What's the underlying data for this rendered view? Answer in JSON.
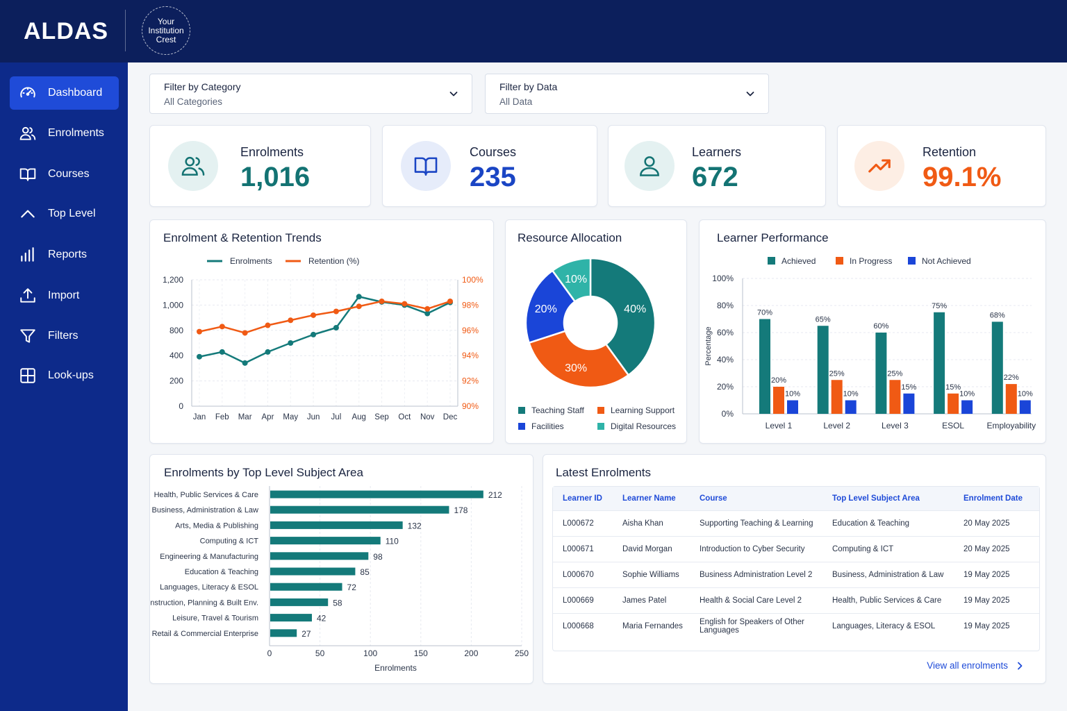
{
  "app": {
    "logo": "ALDAS",
    "crest": "Your Institution Crest"
  },
  "sidebar": {
    "items": [
      {
        "label": "Dashboard",
        "icon": "gauge-icon",
        "active": true
      },
      {
        "label": "Enrolments",
        "icon": "users-icon"
      },
      {
        "label": "Courses",
        "icon": "book-icon"
      },
      {
        "label": "Top Level",
        "icon": "chevron-up-icon"
      },
      {
        "label": "Reports",
        "icon": "bar-chart-icon"
      },
      {
        "label": "Import",
        "icon": "upload-icon"
      },
      {
        "label": "Filters",
        "icon": "filter-icon"
      },
      {
        "label": "Look-ups",
        "icon": "grid-icon"
      }
    ]
  },
  "filters": {
    "category": {
      "label": "Filter by Category",
      "value": "All Categories"
    },
    "data": {
      "label": "Filter by Data",
      "value": "All Data"
    }
  },
  "kpis": [
    {
      "label": "Enrolments",
      "value": "1,016",
      "icon": "users-icon",
      "color": "#137373"
    },
    {
      "label": "Courses",
      "value": "235",
      "icon": "book-icon",
      "color": "#1a45c4"
    },
    {
      "label": "Learners",
      "value": "672",
      "icon": "user-icon",
      "color": "#137373"
    },
    {
      "label": "Retention",
      "value": "99.1%",
      "icon": "trend-up-icon",
      "color": "#f05a14"
    }
  ],
  "chart_data": [
    {
      "type": "line",
      "title": "Enrolment & Retention Trends",
      "categories": [
        "Jan",
        "Feb",
        "Mar",
        "Apr",
        "May",
        "Jun",
        "Jul",
        "Aug",
        "Sep",
        "Oct",
        "Nov",
        "Dec"
      ],
      "series": [
        {
          "name": "Enrolments",
          "axis": "left",
          "color": "#147a7a",
          "values": [
            470,
            515,
            410,
            515,
            600,
            680,
            745,
            1040,
            990,
            960,
            880,
            985
          ]
        },
        {
          "name": "Retention (%)",
          "axis": "right",
          "color": "#f05a14",
          "values": [
            95.9,
            96.3,
            95.8,
            96.4,
            96.8,
            97.2,
            97.5,
            97.9,
            98.3,
            98.1,
            97.7,
            98.3
          ]
        }
      ],
      "ylim_left": [
        0,
        1200
      ],
      "yticks_left": [
        "0",
        "200",
        "400",
        "800",
        "1,000",
        "1,200"
      ],
      "ylim_right": [
        90,
        100
      ],
      "yticks_right": [
        "90%",
        "92%",
        "94%",
        "96%",
        "98%",
        "100%"
      ],
      "legend": "top-center",
      "grid": true
    },
    {
      "type": "pie",
      "title": "Resource Allocation",
      "slices": [
        {
          "label": "Teaching Staff",
          "value": 40,
          "text": "40%",
          "color": "#147a7a"
        },
        {
          "label": "Learning Support",
          "value": 30,
          "text": "30%",
          "color": "#f05a14"
        },
        {
          "label": "Facilities",
          "value": 20,
          "text": "20%",
          "color": "#1a45d8"
        },
        {
          "label": "Digital Resources",
          "value": 10,
          "text": "10%",
          "color": "#2fb3a8"
        }
      ],
      "donut": true,
      "legend": "bottom"
    },
    {
      "type": "bar",
      "title": "Learner Performance",
      "ylabel": "Percentage",
      "categories": [
        "Level 1",
        "Level 2",
        "Level 3",
        "ESOL",
        "Employability"
      ],
      "series": [
        {
          "name": "Achieved",
          "color": "#147a7a",
          "values": [
            70,
            65,
            60,
            75,
            68
          ]
        },
        {
          "name": "In Progress",
          "color": "#f05a14",
          "values": [
            20,
            25,
            25,
            15,
            22
          ]
        },
        {
          "name": "Not Achieved",
          "color": "#1a45d8",
          "values": [
            10,
            10,
            15,
            10,
            10
          ]
        }
      ],
      "ylim": [
        0,
        100
      ],
      "yticks": [
        "0%",
        "20%",
        "40%",
        "60%",
        "80%",
        "100%"
      ],
      "legend": "top-center",
      "grid": true
    },
    {
      "type": "bar",
      "orientation": "horizontal",
      "title": "Enrolments by Top Level Subject Area",
      "xlabel": "Enrolments",
      "categories": [
        "Health, Public Services & Care",
        "Business, Administration & Law",
        "Arts, Media & Publishing",
        "Computing & ICT",
        "Engineering & Manufacturing",
        "Education & Teaching",
        "Languages, Literacy & ESOL",
        "Construction, Planning & Built Env.",
        "Leisure, Travel & Tourism",
        "Retail & Commercial Enterprise"
      ],
      "values": [
        212,
        178,
        132,
        110,
        98,
        85,
        72,
        58,
        42,
        27
      ],
      "xlim": [
        0,
        250
      ],
      "xticks": [
        "0",
        "50",
        "100",
        "150",
        "200",
        "250"
      ],
      "color": "#147a7a",
      "grid": true
    }
  ],
  "latest": {
    "title": "Latest Enrolments",
    "columns": [
      "Learner ID",
      "Learner Name",
      "Course",
      "Top Level Subject Area",
      "Enrolment Date"
    ],
    "rows": [
      [
        "L000672",
        "Aisha Khan",
        "Supporting Teaching & Learning",
        "Education & Teaching",
        "20 May 2025"
      ],
      [
        "L000671",
        "David Morgan",
        "Introduction to Cyber Security",
        "Computing & ICT",
        "20 May 2025"
      ],
      [
        "L000670",
        "Sophie Williams",
        "Business Administration Level 2",
        "Business, Administration & Law",
        "19 May 2025"
      ],
      [
        "L000669",
        "James Patel",
        "Health & Social Care Level 2",
        "Health, Public Services & Care",
        "19 May 2025"
      ],
      [
        "L000668",
        "Maria Fernandes",
        "English for Speakers of Other Languages",
        "Languages, Literacy & ESOL",
        "19 May 2025"
      ]
    ],
    "view_all": "View all enrolments"
  }
}
